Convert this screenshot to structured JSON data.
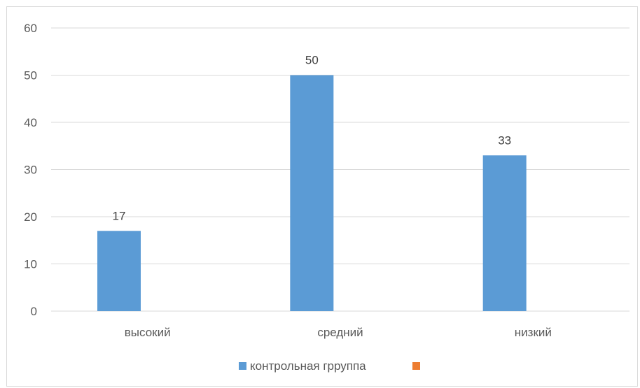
{
  "chart_data": {
    "type": "bar",
    "categories": [
      "высокий",
      "средний",
      "низкий"
    ],
    "series": [
      {
        "name": "контрольная грруппа",
        "values": [
          17,
          50,
          33
        ],
        "color": "#5b9bd5"
      },
      {
        "name": "",
        "values": [
          null,
          null,
          null
        ],
        "color": "#ed7d31"
      }
    ],
    "data_labels": [
      "17",
      "50",
      "33"
    ],
    "yticks": [
      "0",
      "10",
      "20",
      "30",
      "40",
      "50",
      "60"
    ],
    "ylim": [
      0,
      60
    ],
    "grid": true,
    "legend": "bottom"
  }
}
